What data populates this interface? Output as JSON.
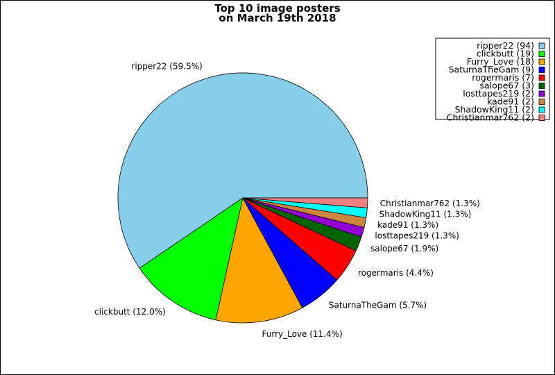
{
  "chart_data": {
    "type": "pie",
    "title_line1": "Top 10 image posters",
    "title_line2": "on March 19th 2018",
    "legend_position": "top-right",
    "slices": [
      {
        "name": "ripper22",
        "value": 94,
        "percent_label": "ripper22 (59.5%)",
        "legend_label": "ripper22 (94)",
        "color": "#87ceeb"
      },
      {
        "name": "clickbutt",
        "value": 19,
        "percent_label": "clickbutt (12.0%)",
        "legend_label": "clickbutt (19)",
        "color": "#00ff00"
      },
      {
        "name": "Furry_Love",
        "value": 18,
        "percent_label": "Furry_Love (11.4%)",
        "legend_label": "Furry_Love (18)",
        "color": "#ffa500"
      },
      {
        "name": "SaturnaTheGam",
        "value": 9,
        "percent_label": "SaturnaTheGam (5.7%)",
        "legend_label": "SaturnaTheGam (9)",
        "color": "#0000ff"
      },
      {
        "name": "rogermaris",
        "value": 7,
        "percent_label": "rogermaris (4.4%)",
        "legend_label": "rogermaris (7)",
        "color": "#ff0000"
      },
      {
        "name": "salope67",
        "value": 3,
        "percent_label": "salope67 (1.9%)",
        "legend_label": "salope67 (3)",
        "color": "#006400"
      },
      {
        "name": "losttapes219",
        "value": 2,
        "percent_label": "losttapes219 (1.3%)",
        "legend_label": "losttapes219 (2)",
        "color": "#9400d3"
      },
      {
        "name": "kade91",
        "value": 2,
        "percent_label": "kade91 (1.3%)",
        "legend_label": "kade91 (2)",
        "color": "#cd853f"
      },
      {
        "name": "ShadowKing11",
        "value": 2,
        "percent_label": "ShadowKing11 (1.3%)",
        "legend_label": "ShadowKing11 (2)",
        "color": "#00ffff"
      },
      {
        "name": "Christianmar762",
        "value": 2,
        "percent_label": "Christianmar762 (1.3%)",
        "legend_label": "Christianmar762 (2)",
        "color": "#f08080"
      }
    ]
  }
}
